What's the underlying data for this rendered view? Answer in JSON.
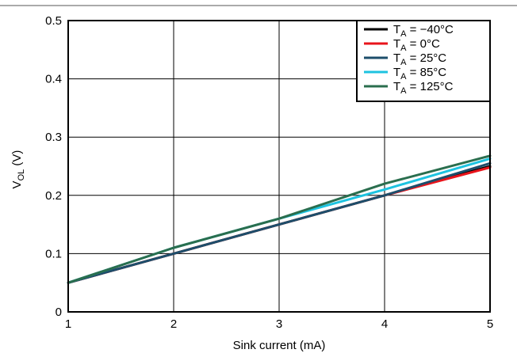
{
  "chart_data": {
    "type": "line",
    "title": "",
    "xlabel": "Sink current (mA)",
    "ylabel": {
      "main": "V",
      "sub": "OL",
      "unit": " (V)"
    },
    "xlim": [
      1,
      5
    ],
    "ylim": [
      0,
      0.5
    ],
    "x_ticks": [
      1,
      2,
      3,
      4,
      5
    ],
    "x_tick_labels": [
      "1",
      "2",
      "3",
      "4",
      "5"
    ],
    "y_ticks": [
      0,
      0.1,
      0.2,
      0.3,
      0.4,
      0.5
    ],
    "y_tick_labels": [
      "0",
      "0.1",
      "0.2",
      "0.3",
      "0.4",
      "0.5"
    ],
    "grid": true,
    "legend_position": "top-right",
    "x": [
      1,
      2,
      3,
      4,
      5
    ],
    "series": [
      {
        "name": "T_A = −40°C",
        "label_main": "T",
        "label_sub": "A",
        "label_rest": " = −40°C",
        "color": "#000000",
        "values": [
          0.05,
          0.1,
          0.15,
          0.2,
          0.25
        ]
      },
      {
        "name": "T_A = 0°C",
        "label_main": "T",
        "label_sub": "A",
        "label_rest": " = 0°C",
        "color": "#e8141b",
        "values": [
          0.05,
          0.1,
          0.15,
          0.2,
          0.248
        ]
      },
      {
        "name": "T_A = 25°C",
        "label_main": "T",
        "label_sub": "A",
        "label_rest": " = 25°C",
        "color": "#1d4e6b",
        "values": [
          0.05,
          0.1,
          0.15,
          0.2,
          0.255
        ]
      },
      {
        "name": "T_A = 85°C",
        "label_main": "T",
        "label_sub": "A",
        "label_rest": " = 85°C",
        "color": "#1ec3e0",
        "values": [
          0.05,
          0.11,
          0.16,
          0.21,
          0.263
        ]
      },
      {
        "name": "T_A = 125°C",
        "label_main": "T",
        "label_sub": "A",
        "label_rest": " = 125°C",
        "color": "#2a6e4e",
        "values": [
          0.05,
          0.11,
          0.16,
          0.22,
          0.268
        ]
      }
    ]
  }
}
